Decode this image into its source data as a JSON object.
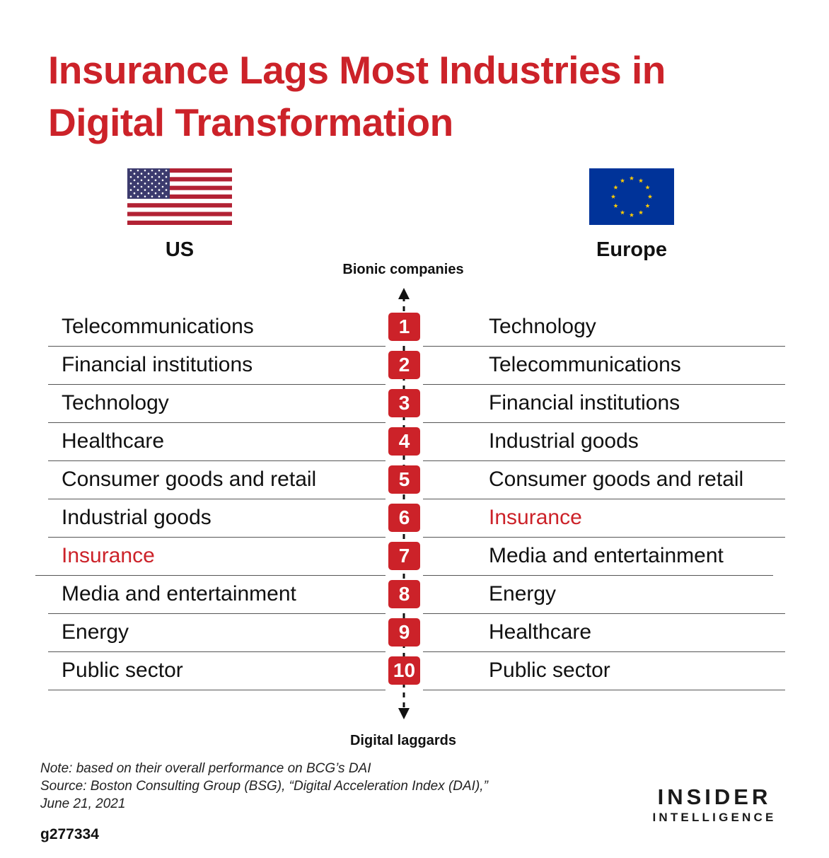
{
  "title": "Insurance Lags Most Industries in Digital Transformation",
  "regions": {
    "left": {
      "label": "US",
      "flag_icon": "us-flag-icon"
    },
    "right": {
      "label": "Europe",
      "flag_icon": "eu-flag-icon"
    }
  },
  "axis": {
    "top_label": "Bionic companies",
    "bottom_label": "Digital laggards"
  },
  "highlight_item": "Insurance",
  "colors": {
    "accent": "#cc2229",
    "us_red": "#b22234",
    "us_blue": "#3c3b6e",
    "eu_blue": "#003399",
    "eu_star": "#ffcc00"
  },
  "rows": [
    {
      "rank": "1",
      "us": "Telecommunications",
      "europe": "Technology"
    },
    {
      "rank": "2",
      "us": "Financial institutions",
      "europe": "Telecommunications"
    },
    {
      "rank": "3",
      "us": "Technology",
      "europe": "Financial institutions"
    },
    {
      "rank": "4",
      "us": "Healthcare",
      "europe": "Industrial goods"
    },
    {
      "rank": "5",
      "us": "Consumer goods and retail",
      "europe": "Consumer goods and retail"
    },
    {
      "rank": "6",
      "us": "Industrial goods",
      "europe": "Insurance"
    },
    {
      "rank": "7",
      "us": "Insurance",
      "europe": "Media and entertainment"
    },
    {
      "rank": "8",
      "us": "Media and entertainment",
      "europe": "Energy"
    },
    {
      "rank": "9",
      "us": "Energy",
      "europe": "Healthcare"
    },
    {
      "rank": "10",
      "us": "Public sector",
      "europe": "Public sector"
    }
  ],
  "footer": {
    "note": "Note: based on their overall performance on BCG’s DAI",
    "source_line1": "Source: Boston Consulting Group (BSG), “Digital Acceleration Index (DAI),”",
    "source_line2": "June 21, 2021",
    "code": "g277334"
  },
  "brand": {
    "line1": "INSIDER",
    "line2": "INTELLIGENCE"
  }
}
